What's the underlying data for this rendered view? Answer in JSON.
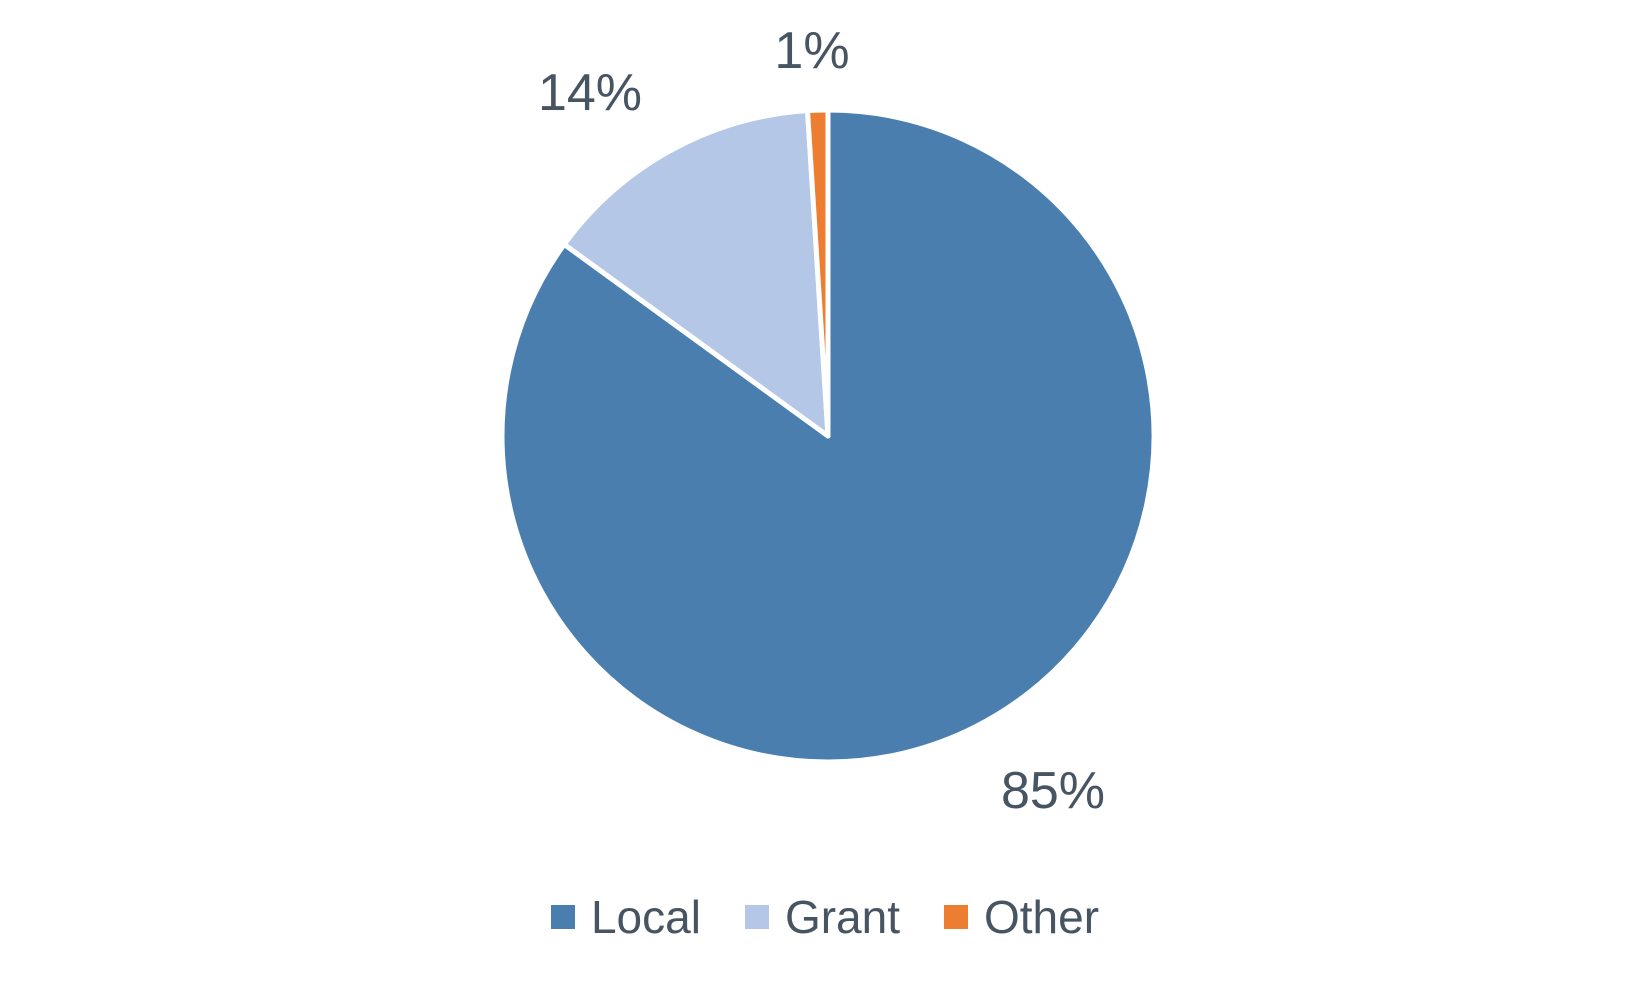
{
  "chart_data": {
    "type": "pie",
    "categories": [
      "Local",
      "Grant",
      "Other"
    ],
    "values": [
      85,
      14,
      1
    ],
    "labels": [
      "85%",
      "14%",
      "1%"
    ],
    "colors": [
      "#4A7EAF",
      "#B4C7E6",
      "#ED7D31"
    ],
    "legend": "bottom",
    "start_angle": "12 o'clock",
    "direction": "clockwise"
  }
}
